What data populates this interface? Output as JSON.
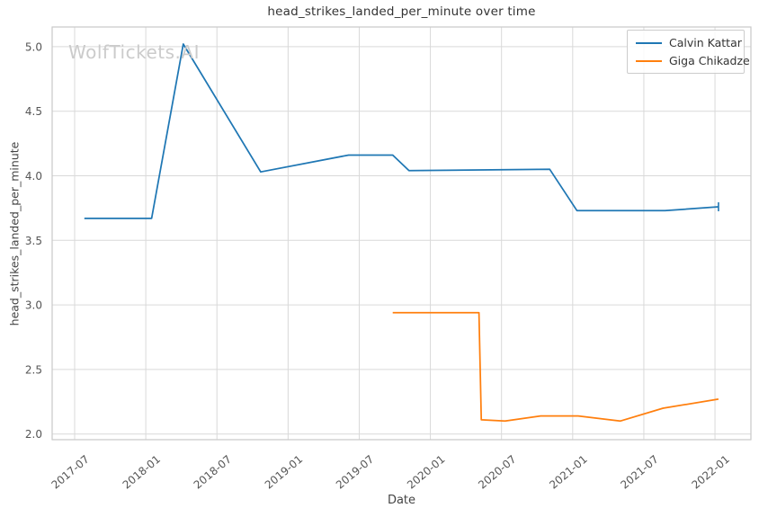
{
  "watermark": "WolfTickets.AI",
  "chart_data": {
    "type": "line",
    "title": "head_strikes_landed_per_minute over time",
    "xlabel": "Date",
    "ylabel": "head_strikes_landed_per_minute",
    "grid": true,
    "legend_position": "upper right",
    "x_ticks": [
      "2017-07",
      "2018-01",
      "2018-07",
      "2019-01",
      "2019-07",
      "2020-01",
      "2020-07",
      "2021-01",
      "2021-07",
      "2022-01"
    ],
    "y_ticks": [
      2.0,
      2.5,
      3.0,
      3.5,
      4.0,
      4.5,
      5.0
    ],
    "y_range": [
      1.96,
      5.15
    ],
    "x_range": [
      "2017-05",
      "2022-04"
    ],
    "series": [
      {
        "name": "Calvin Kattar",
        "color": "#1f77b4",
        "points": [
          [
            "2017-07-26",
            3.67
          ],
          [
            "2018-01-16",
            3.67
          ],
          [
            "2018-04-06",
            5.02
          ],
          [
            "2018-10-22",
            4.03
          ],
          [
            "2019-06-04",
            4.16
          ],
          [
            "2019-09-26",
            4.16
          ],
          [
            "2019-11-07",
            4.04
          ],
          [
            "2020-11-03",
            4.05
          ],
          [
            "2021-01-12",
            3.73
          ],
          [
            "2021-08-25",
            3.73
          ],
          [
            "2022-01-10",
            3.76
          ]
        ]
      },
      {
        "name": "Giga Chikadze",
        "color": "#ff7f0e",
        "points": [
          [
            "2019-09-26",
            2.94
          ],
          [
            "2020-05-04",
            2.94
          ],
          [
            "2020-05-10",
            2.11
          ],
          [
            "2020-07-10",
            2.1
          ],
          [
            "2020-10-10",
            2.14
          ],
          [
            "2021-01-15",
            2.14
          ],
          [
            "2021-05-01",
            2.1
          ],
          [
            "2021-08-20",
            2.2
          ],
          [
            "2022-01-10",
            2.27
          ]
        ]
      }
    ],
    "colors": {
      "grid": "#d9d9d9",
      "spine": "#c9c9c9",
      "tick_text": "#555555"
    }
  }
}
